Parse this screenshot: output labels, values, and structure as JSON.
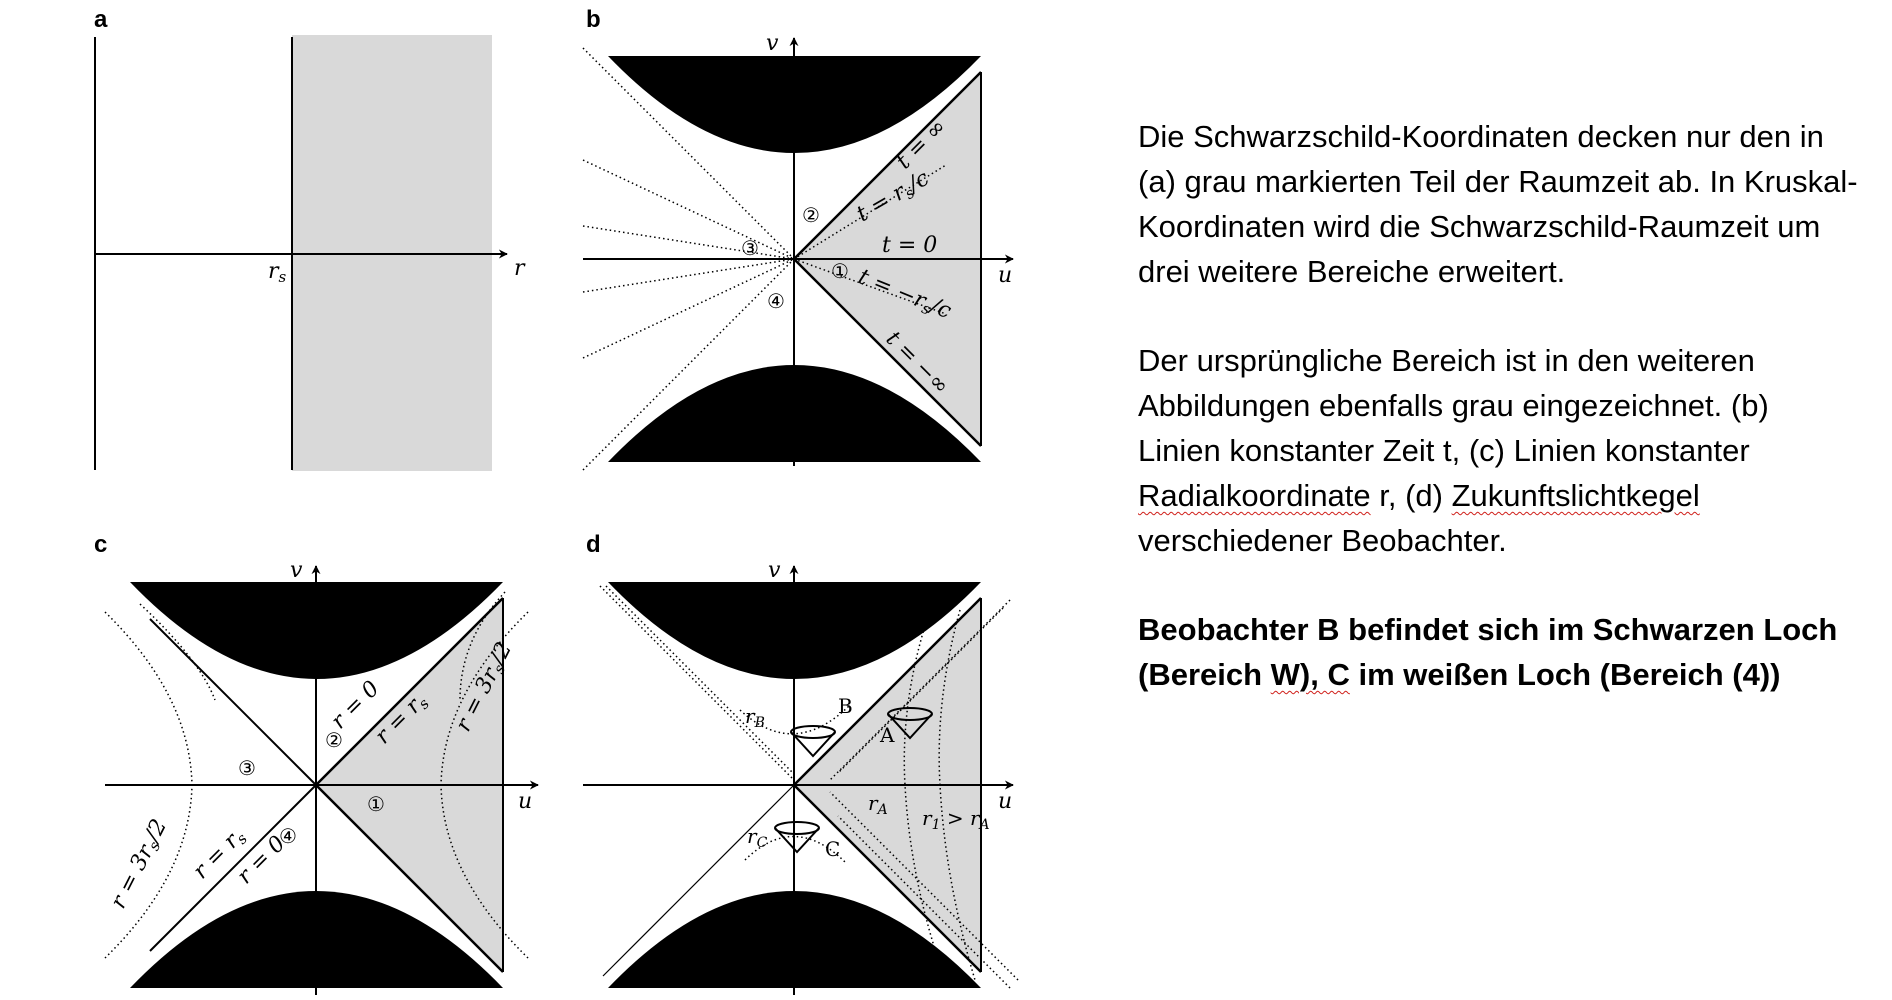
{
  "panels": {
    "a": {
      "letter": "a",
      "labels": {
        "rs": "r",
        "rs_sub": "s",
        "r_axis": "r"
      }
    },
    "b": {
      "letter": "b",
      "labels": {
        "v_axis": "v",
        "u_axis": "u",
        "t_inf": "t = ∞",
        "t_rs_c": "t = r",
        "t_rs_c_sub": "s",
        "t_rs_c_tail": "/c",
        "t_zero": "t = 0",
        "t_neg_rs_c": "t = −r",
        "t_neg_rs_c_sub": "s",
        "t_neg_rs_c_tail": "/c",
        "t_neg_inf": "t = −∞",
        "region1": "①",
        "region2": "②",
        "region3": "③",
        "region4": "④"
      }
    },
    "c": {
      "letter": "c",
      "labels": {
        "v_axis": "v",
        "u_axis": "u",
        "r_zero_top": "r = 0",
        "r_rs_top": "r = r",
        "r_rs_top_sub": "s",
        "r_3rs2_right": "r = 3r",
        "r_3rs2_right_sub": "s",
        "r_3rs2_right_tail": "/2",
        "r_3rs2_left": "r = 3r",
        "r_3rs2_left_sub": "s",
        "r_3rs2_left_tail": "/2",
        "r_rs_bottom": "r = r",
        "r_rs_bottom_sub": "s",
        "r_zero_bottom": "r = 0",
        "region1": "①",
        "region2": "②",
        "region3": "③",
        "region4": "④"
      }
    },
    "d": {
      "letter": "d",
      "labels": {
        "v_axis": "v",
        "u_axis": "u",
        "rB": "r",
        "rB_sub": "B",
        "B": "B",
        "A": "A",
        "rA": "r",
        "rA_sub": "A",
        "r1_gt_rA": "r",
        "r1_sub": "1",
        "r1_gt_rA_mid": " > r",
        "r1_gt_rA_sub2": "A",
        "rC": "r",
        "rC_sub": "C",
        "C": "C"
      }
    }
  },
  "caption": {
    "p1": "Die Schwarzschild-Koordinaten decken nur den in (a) grau markierten Teil der Raumzeit ab. In Kruskal-Koordinaten wird die Schwarzschild-Raumzeit um drei weitere Bereiche erweitert.",
    "p2_a": "Der ursprüngliche Bereich ist in den weiteren Abbildungen ebenfalls grau eingezeichnet. (b) Linien konstanter Zeit t, (c) Linien konstanter ",
    "p2_w1": "Radialkoordinate",
    "p2_b": " r, (d) ",
    "p2_w2": "Zukunftslichtkegel",
    "p2_c": " verschiedener Beobachter.",
    "p3_a": "Beobachter B befindet sich im Schwarzen Loch (Bereich ",
    "p3_w": "W), C",
    "p3_b": " im weißen Loch (Bereich (4))"
  },
  "colors": {
    "grey_region": "#d9d9d9",
    "singularity": "#000000",
    "squiggle": "#d0201a"
  }
}
